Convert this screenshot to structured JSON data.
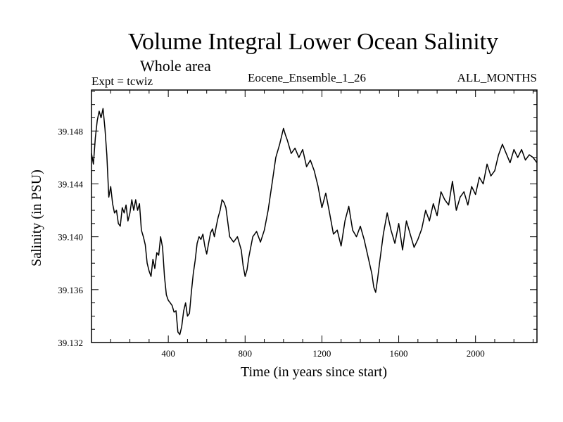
{
  "chart_data": {
    "type": "line",
    "title": "Volume Integral Lower Ocean Salinity",
    "subtitle": "Whole area",
    "expt_label": "Expt = tcwiz",
    "ensemble_label": "Eocene_Ensemble_1_26",
    "months_label": "ALL_MONTHS",
    "xlabel": "Time (in years since start)",
    "ylabel": "Salinity (in PSU)",
    "xlim": [
      0,
      2320
    ],
    "ylim": [
      39.132,
      39.1511
    ],
    "xticks": [
      400,
      800,
      1200,
      1600,
      2000
    ],
    "xtick_labels": [
      "400",
      "800",
      "1200",
      "1600",
      "2000"
    ],
    "yticks": [
      39.132,
      39.136,
      39.14,
      39.144,
      39.148
    ],
    "ytick_labels": [
      "39.132",
      "39.136",
      "39.140",
      "39.144",
      "39.148"
    ],
    "grid": false,
    "series": [
      {
        "color": "#000000",
        "x": [
          0,
          10,
          20,
          30,
          40,
          50,
          60,
          70,
          80,
          90,
          100,
          110,
          120,
          130,
          140,
          150,
          160,
          170,
          180,
          190,
          200,
          210,
          220,
          230,
          240,
          250,
          260,
          270,
          280,
          290,
          300,
          310,
          320,
          330,
          340,
          350,
          360,
          370,
          380,
          390,
          400,
          410,
          420,
          430,
          440,
          450,
          460,
          470,
          480,
          490,
          500,
          510,
          520,
          530,
          540,
          550,
          560,
          570,
          580,
          590,
          600,
          610,
          620,
          630,
          640,
          650,
          660,
          670,
          680,
          690,
          700,
          720,
          740,
          760,
          780,
          790,
          800,
          810,
          820,
          840,
          860,
          880,
          900,
          920,
          940,
          960,
          980,
          1000,
          1010,
          1020,
          1040,
          1060,
          1080,
          1100,
          1120,
          1140,
          1160,
          1180,
          1200,
          1220,
          1240,
          1260,
          1280,
          1300,
          1320,
          1340,
          1360,
          1380,
          1400,
          1420,
          1440,
          1460,
          1470,
          1480,
          1490,
          1500,
          1520,
          1540,
          1560,
          1580,
          1600,
          1620,
          1640,
          1660,
          1680,
          1700,
          1720,
          1740,
          1760,
          1780,
          1800,
          1820,
          1840,
          1860,
          1880,
          1900,
          1920,
          1940,
          1960,
          1980,
          2000,
          2020,
          2040,
          2060,
          2080,
          2100,
          2120,
          2140,
          2160,
          2180,
          2200,
          2220,
          2240,
          2260,
          2280,
          2300,
          2320
        ],
        "y": [
          39.1463,
          39.1455,
          39.1475,
          39.1488,
          39.1495,
          39.149,
          39.1497,
          39.1482,
          39.1462,
          39.143,
          39.1438,
          39.1425,
          39.1418,
          39.142,
          39.141,
          39.1408,
          39.1422,
          39.1418,
          39.1424,
          39.1412,
          39.1418,
          39.1428,
          39.142,
          39.1428,
          39.142,
          39.1425,
          39.1405,
          39.14,
          39.1394,
          39.138,
          39.1374,
          39.137,
          39.1383,
          39.1376,
          39.1388,
          39.1386,
          39.14,
          39.1392,
          39.137,
          39.1356,
          39.1352,
          39.135,
          39.1348,
          39.1343,
          39.1344,
          39.1328,
          39.1326,
          39.1332,
          39.1344,
          39.135,
          39.134,
          39.1342,
          39.1358,
          39.1372,
          39.1382,
          39.1395,
          39.14,
          39.1398,
          39.1402,
          39.1393,
          39.1387,
          39.1395,
          39.1403,
          39.1406,
          39.14,
          39.1408,
          39.1415,
          39.142,
          39.1428,
          39.1426,
          39.1422,
          39.14,
          39.1396,
          39.14,
          39.139,
          39.1378,
          39.137,
          39.1375,
          39.1385,
          39.14,
          39.1404,
          39.1396,
          39.1405,
          39.142,
          39.144,
          39.146,
          39.147,
          39.1482,
          39.1477,
          39.1473,
          39.1463,
          39.1467,
          39.146,
          39.1466,
          39.1453,
          39.1458,
          39.145,
          39.1438,
          39.1422,
          39.1433,
          39.1418,
          39.1402,
          39.1405,
          39.1393,
          39.1412,
          39.1423,
          39.1405,
          39.14,
          39.1408,
          39.1398,
          39.1385,
          39.1372,
          39.1362,
          39.1358,
          39.1368,
          39.138,
          39.1402,
          39.1418,
          39.1405,
          39.1395,
          39.141,
          39.139,
          39.1412,
          39.1402,
          39.1392,
          39.1398,
          39.1406,
          39.142,
          39.1412,
          39.1425,
          39.1416,
          39.1434,
          39.1428,
          39.1424,
          39.1442,
          39.142,
          39.143,
          39.1434,
          39.1424,
          39.1438,
          39.1432,
          39.1445,
          39.144,
          39.1455,
          39.1446,
          39.145,
          39.1462,
          39.147,
          39.1463,
          39.1456,
          39.1466,
          39.146,
          39.1466,
          39.1458,
          39.1462,
          39.146,
          39.1456
        ]
      }
    ]
  }
}
